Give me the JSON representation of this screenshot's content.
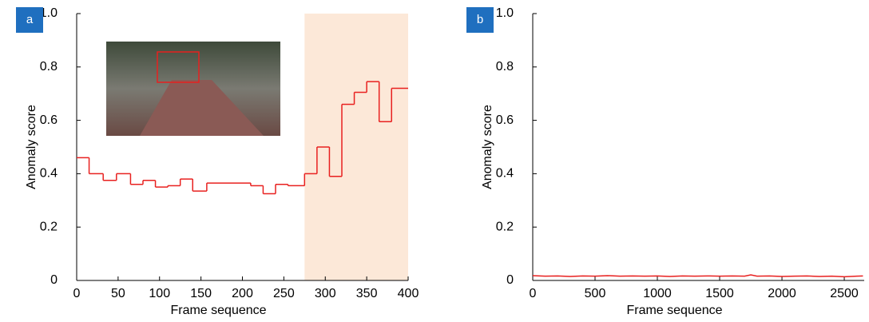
{
  "chart_data": [
    {
      "type": "line",
      "line_style": "step",
      "panel": "a",
      "x_label": "Frame sequence",
      "y_label": "Anomaly score",
      "x": [
        0,
        15,
        32,
        48,
        65,
        80,
        95,
        110,
        125,
        140,
        157,
        210,
        225,
        240,
        255,
        275,
        290,
        305,
        320,
        335,
        350,
        365,
        380
      ],
      "values": [
        0.46,
        0.4,
        0.375,
        0.4,
        0.36,
        0.375,
        0.35,
        0.355,
        0.38,
        0.335,
        0.365,
        0.355,
        0.325,
        0.36,
        0.355,
        0.4,
        0.5,
        0.39,
        0.66,
        0.705,
        0.745,
        0.595,
        0.72
      ],
      "color": "#e8201f",
      "highlight": {
        "x": [
          275,
          400
        ],
        "color": "#fce8d8"
      },
      "xlim": [
        0,
        400
      ],
      "xticks": [
        0,
        50,
        100,
        150,
        200,
        250,
        300,
        350,
        400
      ],
      "ylim": [
        0,
        1
      ],
      "yticks": [
        0,
        0.2,
        0.4,
        0.6,
        0.8,
        {
          "value": 1,
          "label": "1.0"
        }
      ]
    },
    {
      "type": "line",
      "line_style": "plain",
      "panel": "b",
      "x_label": "Frame sequence",
      "y_label": "Anomaly score",
      "x": [
        0,
        100,
        200,
        300,
        400,
        500,
        600,
        700,
        800,
        900,
        1000,
        1100,
        1200,
        1300,
        1400,
        1500,
        1600,
        1700,
        1750,
        1800,
        1900,
        2000,
        2100,
        2200,
        2300,
        2400,
        2500,
        2600,
        2650
      ],
      "values": [
        0.018,
        0.016,
        0.017,
        0.015,
        0.017,
        0.016,
        0.018,
        0.016,
        0.017,
        0.016,
        0.017,
        0.015,
        0.017,
        0.016,
        0.017,
        0.016,
        0.017,
        0.016,
        0.021,
        0.016,
        0.017,
        0.015,
        0.016,
        0.017,
        0.015,
        0.016,
        0.014,
        0.016,
        0.017
      ],
      "color": "#e8201f",
      "xlim": [
        0,
        2660
      ],
      "xticks": [
        0,
        500,
        1000,
        1500,
        2000,
        2500
      ],
      "ylim": [
        0,
        1
      ],
      "yticks": [
        0,
        0.2,
        0.4,
        0.6,
        0.8,
        {
          "value": 1,
          "label": "1.0"
        }
      ]
    }
  ]
}
